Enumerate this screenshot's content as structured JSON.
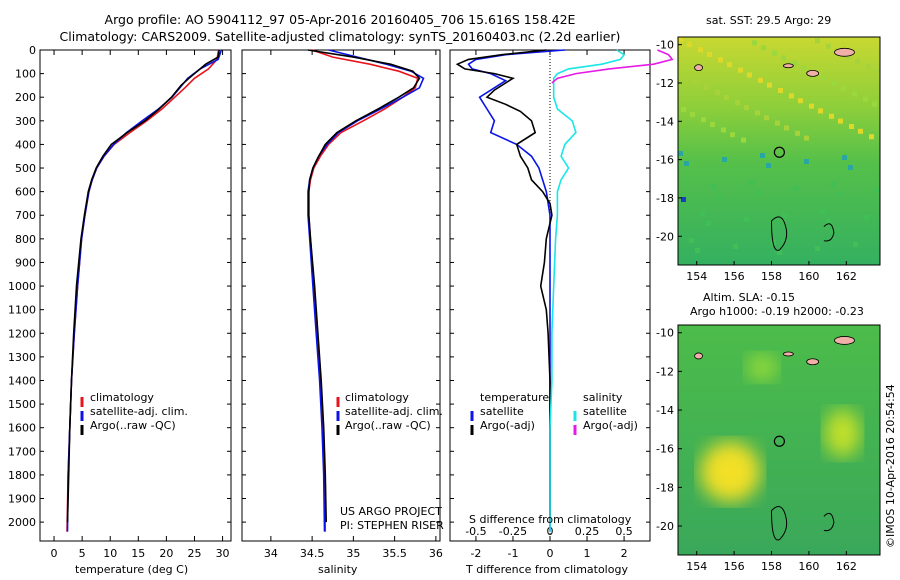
{
  "header": {
    "line1": "Argo profile: AO 5904112_97 05-Apr-2016 20160405_706 15.616S 158.42E",
    "line2": "Climatology: CARS2009. Satellite-adjusted climatology: synTS_20160403.nc (2.2d earlier)"
  },
  "colors": {
    "red": "#e8141b",
    "blue": "#0a14e6",
    "black": "#000000",
    "cyan": "#19e6e6",
    "magenta": "#e619e6"
  },
  "chart_data": [
    {
      "type": "line",
      "xlabel": "temperature (deg C)",
      "xticks": [
        0,
        5,
        10,
        15,
        20,
        25,
        30
      ],
      "xlim": [
        -2.5,
        31.5
      ],
      "ylim": [
        2080,
        0
      ],
      "yticks": [
        0,
        100,
        200,
        300,
        400,
        500,
        600,
        700,
        800,
        900,
        1000,
        1100,
        1200,
        1300,
        1400,
        1500,
        1600,
        1700,
        1800,
        1900,
        2000
      ],
      "legend": [
        "climatology",
        "satellite-adj. clim.",
        "Argo(..raw -QC)"
      ],
      "series": [
        {
          "name": "climatology",
          "color": "red",
          "depth": [
            0,
            40,
            80,
            120,
            160,
            200,
            250,
            300,
            350,
            400,
            450,
            500,
            550,
            600,
            700,
            800,
            1000,
            1200,
            1400,
            1600,
            1800,
            2040
          ],
          "values": [
            29.3,
            29.0,
            27.5,
            25.0,
            23.3,
            21.5,
            19.2,
            16.5,
            13.5,
            10.7,
            8.9,
            7.6,
            6.8,
            6.2,
            5.5,
            4.9,
            4.2,
            3.6,
            3.1,
            2.8,
            2.5,
            2.3
          ]
        },
        {
          "name": "satellite-adj. clim.",
          "color": "blue",
          "depth": [
            0,
            40,
            80,
            120,
            160,
            200,
            250,
            300,
            350,
            400,
            450,
            500,
            550,
            600,
            700,
            800,
            1000,
            1200,
            1400,
            1600,
            1800,
            2040
          ],
          "values": [
            29.8,
            29.2,
            26.0,
            23.8,
            22.4,
            21.0,
            18.6,
            15.7,
            12.9,
            10.6,
            8.9,
            7.6,
            6.8,
            6.2,
            5.5,
            4.9,
            4.2,
            3.6,
            3.1,
            2.8,
            2.5,
            2.4
          ]
        },
        {
          "name": "Argo(..raw -QC)",
          "color": "black",
          "depth": [
            0,
            30,
            60,
            90,
            120,
            150,
            200,
            250,
            300,
            350,
            400,
            450,
            500,
            550,
            600,
            700,
            800,
            1000,
            1200,
            1400,
            1600,
            1800,
            2000
          ],
          "values": [
            29.4,
            29.2,
            27.0,
            25.5,
            24.0,
            22.6,
            20.9,
            18.7,
            16.2,
            13.0,
            10.2,
            8.7,
            7.5,
            6.7,
            6.1,
            5.4,
            4.8,
            4.0,
            3.5,
            3.1,
            2.8,
            2.6,
            2.4
          ]
        }
      ]
    },
    {
      "type": "line",
      "xlabel": "salinity",
      "xticks": [
        34,
        34.5,
        35,
        35.5,
        36
      ],
      "xtick_labels": [
        "34",
        "34.5",
        "35",
        "35.5",
        "36"
      ],
      "xlim": [
        33.65,
        36.05
      ],
      "ylim": [
        2080,
        0
      ],
      "legend": [
        "climatology",
        "satellite-adj. clim.",
        "Argo(..raw -QC)"
      ],
      "annotation": [
        "US ARGO PROJECT",
        "PI: STEPHEN RISER"
      ],
      "series": [
        {
          "name": "climatology",
          "color": "red",
          "depth": [
            0,
            30,
            60,
            90,
            120,
            160,
            200,
            250,
            300,
            350,
            400,
            450,
            500,
            550,
            600,
            700,
            800,
            1000,
            1200,
            1400,
            1600,
            1800,
            2040
          ],
          "values": [
            34.5,
            34.75,
            35.2,
            35.55,
            35.78,
            35.75,
            35.6,
            35.38,
            35.12,
            34.85,
            34.7,
            34.6,
            34.52,
            34.48,
            34.46,
            34.46,
            34.48,
            34.52,
            34.56,
            34.6,
            34.63,
            34.65,
            34.66
          ]
        },
        {
          "name": "satellite-adj. clim.",
          "color": "blue",
          "depth": [
            0,
            30,
            60,
            90,
            120,
            160,
            200,
            250,
            300,
            350,
            400,
            450,
            500,
            550,
            600,
            700,
            800,
            1000,
            1200,
            1400,
            1600,
            1800,
            2040
          ],
          "values": [
            34.7,
            35.05,
            35.4,
            35.7,
            35.85,
            35.8,
            35.6,
            35.33,
            35.05,
            34.82,
            34.68,
            34.58,
            34.51,
            34.47,
            34.45,
            34.45,
            34.47,
            34.51,
            34.55,
            34.59,
            34.62,
            34.64,
            34.65
          ]
        },
        {
          "name": "Argo(..raw -QC)",
          "color": "black",
          "depth": [
            0,
            30,
            60,
            90,
            120,
            160,
            200,
            250,
            300,
            350,
            400,
            450,
            500,
            550,
            600,
            700,
            800,
            1000,
            1200,
            1400,
            1600,
            1800,
            2000
          ],
          "values": [
            34.45,
            35.0,
            35.45,
            35.72,
            35.8,
            35.73,
            35.55,
            35.3,
            35.03,
            34.8,
            34.66,
            34.58,
            34.51,
            34.47,
            34.46,
            34.46,
            34.48,
            34.53,
            34.57,
            34.61,
            34.64,
            34.66,
            34.67
          ]
        }
      ]
    },
    {
      "type": "line",
      "xlabel": "T difference from climatology",
      "xticks": [
        -2,
        -1,
        0,
        1,
        2
      ],
      "xtick_labels": [
        "-2",
        "-1",
        "0",
        "1",
        "2"
      ],
      "xlim": [
        -2.7,
        2.7
      ],
      "top_axis_label": "S difference from climatology",
      "top_ticks": [
        -0.5,
        -0.25,
        0,
        0.25,
        0.5
      ],
      "top_tick_labels": [
        "-0.5",
        "-0.25",
        "0",
        "0.25",
        "0.5"
      ],
      "ylim": [
        2080,
        0
      ],
      "legend_left": {
        "title": "temperature",
        "items": [
          "satellite",
          "Argo(-adj)"
        ]
      },
      "legend_right": {
        "title": "salinity",
        "items": [
          "satellite",
          "Argo(-adj)"
        ]
      },
      "series": [
        {
          "name": "temperature satellite",
          "color": "blue",
          "depth": [
            0,
            20,
            40,
            60,
            80,
            100,
            130,
            160,
            200,
            250,
            300,
            350,
            400,
            450,
            500,
            550,
            600,
            700,
            800,
            1000,
            1200,
            1400,
            1600,
            1800,
            2040
          ],
          "values": [
            0.4,
            -1.2,
            -2.0,
            -2.2,
            -2.1,
            -1.6,
            -1.2,
            -1.5,
            -1.9,
            -1.7,
            -1.5,
            -1.6,
            -0.9,
            -0.5,
            -0.3,
            -0.2,
            -0.1,
            0,
            0,
            0,
            0,
            0,
            0,
            0,
            0
          ]
        },
        {
          "name": "temperature Argo(-adj)",
          "color": "black",
          "depth": [
            0,
            20,
            40,
            60,
            80,
            100,
            120,
            140,
            170,
            200,
            230,
            260,
            300,
            350,
            400,
            450,
            500,
            550,
            600,
            650,
            700,
            800,
            900,
            1000,
            1100,
            1200,
            1400,
            1600,
            1800,
            2000
          ],
          "values": [
            -0.1,
            -1.3,
            -2.2,
            -2.5,
            -2.3,
            -1.5,
            -1.0,
            -1.2,
            -1.5,
            -1.7,
            -1.2,
            -0.8,
            -0.5,
            -0.4,
            -0.9,
            -0.8,
            -0.6,
            -0.5,
            -0.2,
            0,
            0.05,
            -0.1,
            -0.15,
            -0.25,
            -0.1,
            -0.05,
            0,
            0,
            0,
            0
          ]
        },
        {
          "name": "salinity satellite",
          "color": "cyan",
          "depth": [
            0,
            20,
            40,
            60,
            80,
            100,
            120,
            150,
            200,
            250,
            300,
            350,
            400,
            450,
            500,
            550,
            600,
            700,
            800,
            1000,
            1200,
            1400,
            1600,
            1800,
            2040
          ],
          "values": [
            1.8,
            2.0,
            1.9,
            1.4,
            0.5,
            0.2,
            0.1,
            0.1,
            0.1,
            0.2,
            0.6,
            0.7,
            0.4,
            0.3,
            0.5,
            0.3,
            0.2,
            0.2,
            0.15,
            0.1,
            0.05,
            0.05,
            0,
            0,
            0
          ]
        },
        {
          "name": "salinity Argo(-adj)",
          "color": "magenta",
          "depth": [
            0,
            20,
            40,
            60,
            80,
            100,
            120,
            140
          ],
          "values": [
            2.9,
            3.2,
            3.3,
            2.8,
            1.6,
            0.7,
            0.2,
            0.05
          ]
        }
      ]
    }
  ],
  "maps": {
    "sst": {
      "title": "sat. SST: 29.5 Argo: 29"
    },
    "sla": {
      "title1": "Altim. SLA: -0.15",
      "title2": "Argo h1000: -0.19 h2000: -0.23"
    },
    "lon_ticks": [
      154,
      156,
      158,
      160,
      162
    ],
    "lat_ticks": [
      -10,
      -12,
      -14,
      -16,
      -18,
      -20
    ]
  },
  "credit": "©IMOS 10-Apr-2016 20:54:54"
}
